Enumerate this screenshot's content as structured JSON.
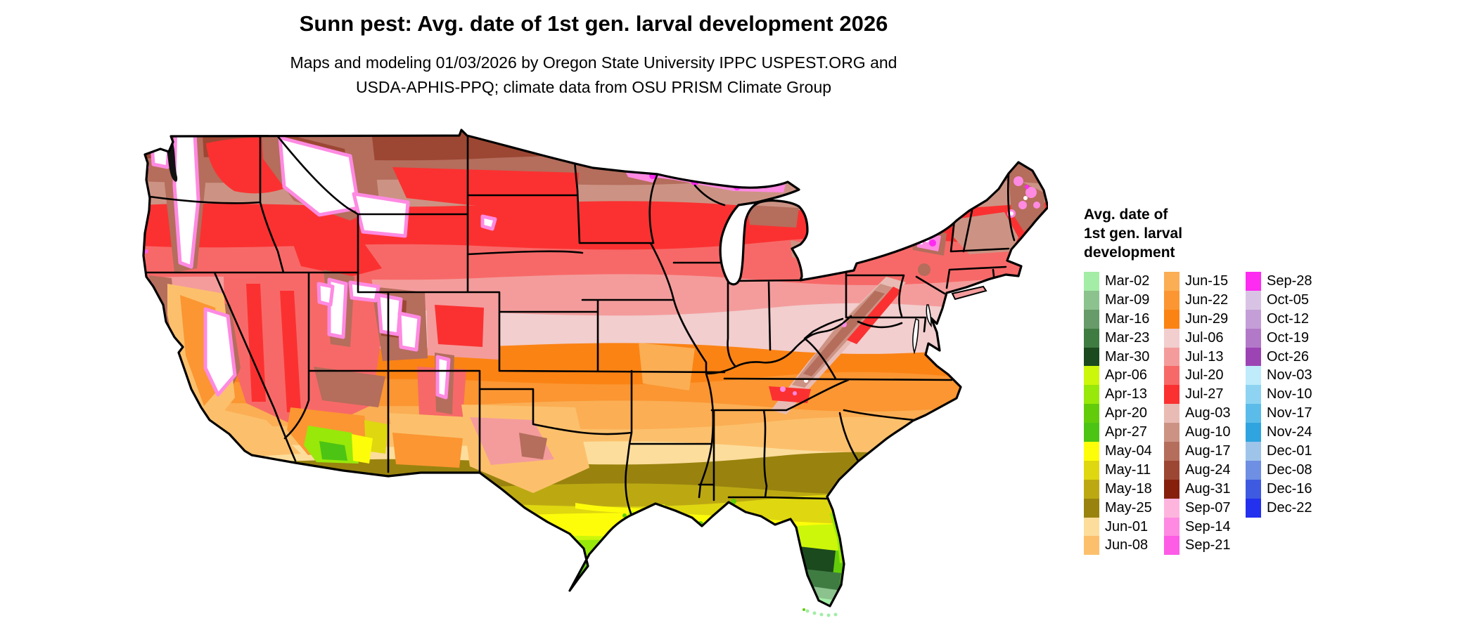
{
  "title": "Sunn pest: Avg. date of 1st gen. larval development 2026",
  "subtitle": {
    "line1": "Maps and modeling 01/03/2026 by Oregon State University IPPC USPEST.ORG and",
    "line2": "USDA-APHIS-PPQ; climate data from OSU PRISM Climate Group"
  },
  "legend": {
    "title_lines": [
      "Avg. date of",
      "1st gen. larval",
      "development"
    ],
    "columns": [
      [
        {
          "label": "Mar-02",
          "color": "#A3EDA6"
        },
        {
          "label": "Mar-09",
          "color": "#8BC28D"
        },
        {
          "label": "Mar-16",
          "color": "#679B69"
        },
        {
          "label": "Mar-23",
          "color": "#3F7C42"
        },
        {
          "label": "Mar-30",
          "color": "#1B4A1E"
        },
        {
          "label": "Apr-06",
          "color": "#CCF70A"
        },
        {
          "label": "Apr-13",
          "color": "#98E80A"
        },
        {
          "label": "Apr-20",
          "color": "#62CC0A"
        },
        {
          "label": "Apr-27",
          "color": "#4CC414"
        },
        {
          "label": "May-04",
          "color": "#FDFD0A"
        },
        {
          "label": "May-11",
          "color": "#DFD710"
        },
        {
          "label": "May-18",
          "color": "#BCA912"
        },
        {
          "label": "May-25",
          "color": "#99830E"
        },
        {
          "label": "Jun-01",
          "color": "#FCDD9C"
        },
        {
          "label": "Jun-08",
          "color": "#FCC06C"
        }
      ],
      [
        {
          "label": "Jun-15",
          "color": "#FBAE54"
        },
        {
          "label": "Jun-22",
          "color": "#FB9632"
        },
        {
          "label": "Jun-29",
          "color": "#FB8314"
        },
        {
          "label": "Jul-06",
          "color": "#F2CECE"
        },
        {
          "label": "Jul-13",
          "color": "#F49C9C"
        },
        {
          "label": "Jul-20",
          "color": "#F76968"
        },
        {
          "label": "Jul-27",
          "color": "#FB3131"
        },
        {
          "label": "Aug-03",
          "color": "#E8BCB4"
        },
        {
          "label": "Aug-10",
          "color": "#CC9384"
        },
        {
          "label": "Aug-17",
          "color": "#B56D5C"
        },
        {
          "label": "Aug-24",
          "color": "#9C4733"
        },
        {
          "label": "Aug-31",
          "color": "#86200D"
        },
        {
          "label": "Sep-07",
          "color": "#FDB5DE"
        },
        {
          "label": "Sep-14",
          "color": "#FE8AE2"
        },
        {
          "label": "Sep-21",
          "color": "#FE5BE6"
        }
      ],
      [
        {
          "label": "Sep-28",
          "color": "#FE2BF1"
        },
        {
          "label": "Oct-05",
          "color": "#D9C3E4"
        },
        {
          "label": "Oct-12",
          "color": "#C49FD7"
        },
        {
          "label": "Oct-19",
          "color": "#B379C9"
        },
        {
          "label": "Oct-26",
          "color": "#9C44B4"
        },
        {
          "label": "Nov-03",
          "color": "#BFEBFB"
        },
        {
          "label": "Nov-10",
          "color": "#8ED4F2"
        },
        {
          "label": "Nov-17",
          "color": "#5CBCE9"
        },
        {
          "label": "Nov-24",
          "color": "#2FA4DF"
        },
        {
          "label": "Dec-01",
          "color": "#9FC4E9"
        },
        {
          "label": "Dec-08",
          "color": "#6E8FE3"
        },
        {
          "label": "Dec-16",
          "color": "#3D5AE0"
        },
        {
          "label": "Dec-22",
          "color": "#2330EE"
        }
      ]
    ]
  }
}
